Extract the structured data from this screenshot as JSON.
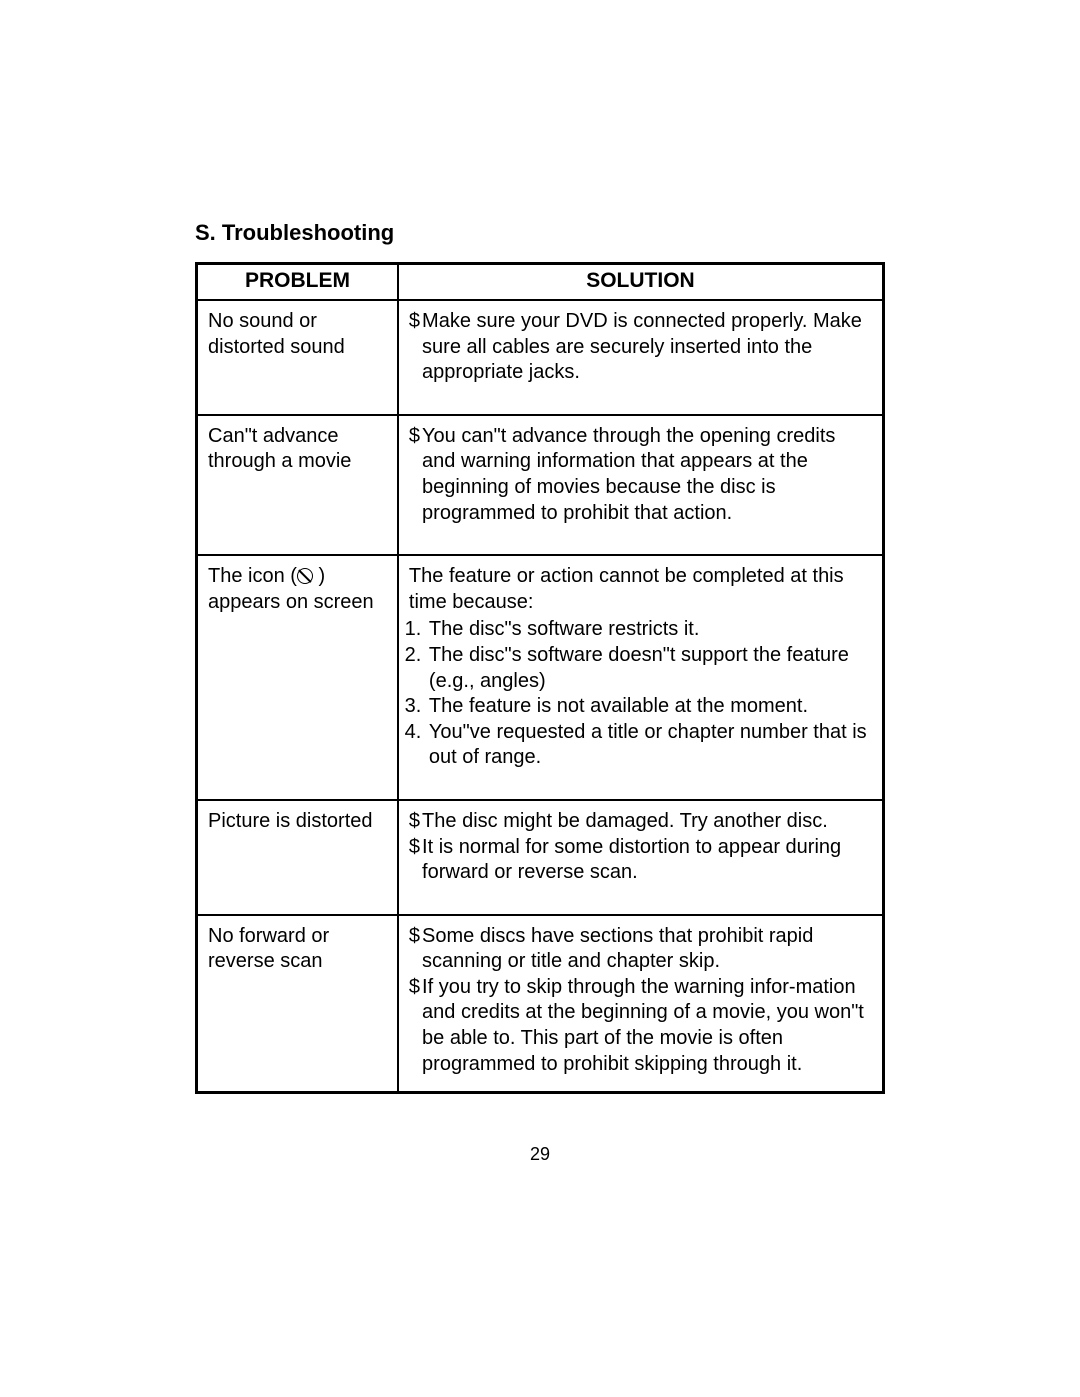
{
  "section_title": "S. Troubleshooting",
  "page_number": "29",
  "headers": {
    "problem": "PROBLEM",
    "solution": "SOLUTION"
  },
  "rows": [
    {
      "problem": "No sound or distorted sound",
      "solutions": [
        {
          "bullet": "$",
          "text": "Make sure your DVD is connected properly. Make sure all cables are securely inserted into the appropriate jacks."
        }
      ]
    },
    {
      "problem": "Can\"t advance through a movie",
      "problem_pad_top": true,
      "solutions": [
        {
          "bullet": "$",
          "text": "You can\"t advance through the opening credits and warning information that appears at the beginning of movies because the disc is programmed to prohibit that action."
        }
      ]
    },
    {
      "problem_html": "The icon (<span class=\"prohibit-icon\" data-name=\"prohibit-icon\" data-interactable=\"false\"></span> ) appears on screen",
      "problem_pad_top": true,
      "solution_intro": "The feature or action cannot be completed at this time because:",
      "list": [
        "The disc\"s software restricts it.",
        "The disc\"s software doesn\"t support  the feature (e.g., angles)",
        "The feature is not available at the moment.",
        "You\"ve requested a title or chapter number that is out of range."
      ]
    },
    {
      "problem": "Picture is distorted",
      "solutions": [
        {
          "bullet": "$",
          "text": "The disc might be damaged. Try another disc."
        },
        {
          "bullet": "$",
          "text": "It is normal for some distortion to appear during forward or reverse scan."
        }
      ]
    },
    {
      "problem": "No forward or reverse scan",
      "solutions": [
        {
          "bullet": "$",
          "text": "Some discs have sections that prohibit rapid scanning or title and chapter skip."
        },
        {
          "bullet": "$ ",
          "text": "If you try to skip through the warning infor-mation and credits at the beginning of a movie, you won\"t be able to.  This part of the movie is often programmed to prohibit skipping through it."
        }
      ]
    }
  ]
}
